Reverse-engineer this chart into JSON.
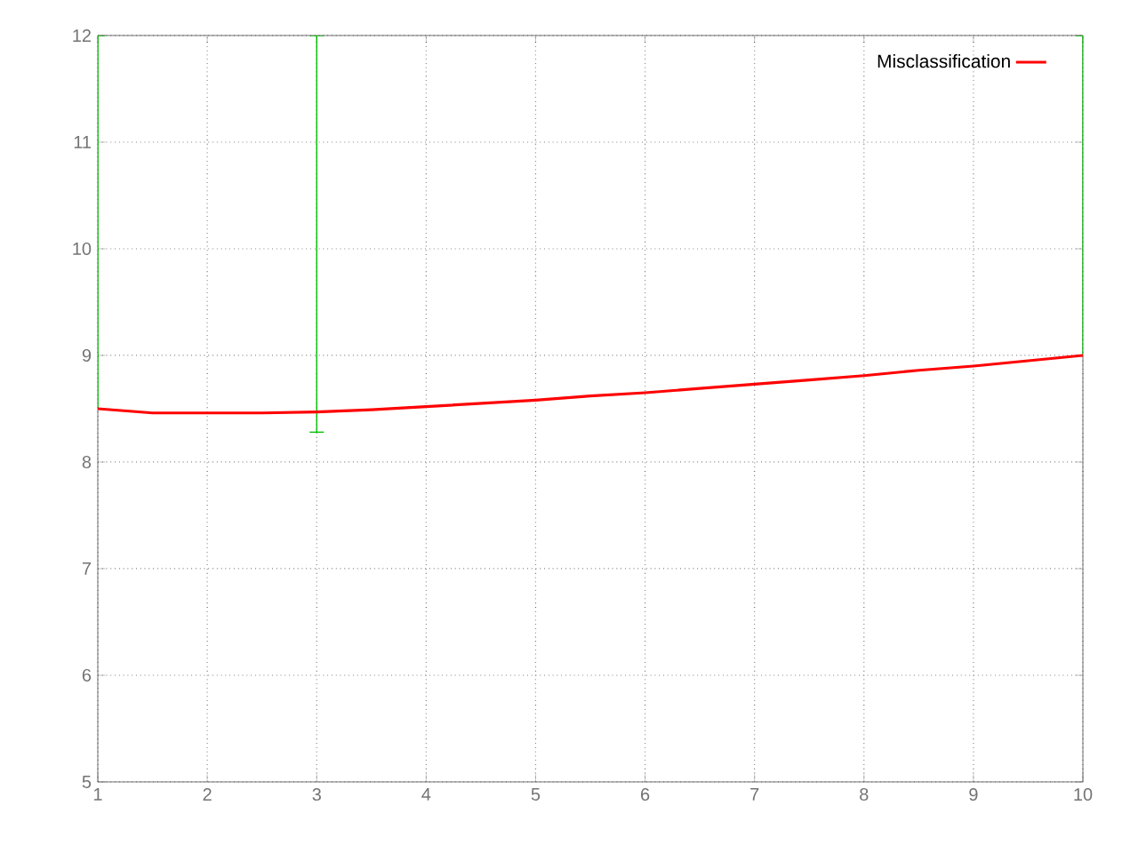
{
  "chart_data": {
    "type": "line",
    "xlim": [
      1,
      10
    ],
    "ylim": [
      5,
      12
    ],
    "xticks": [
      1,
      2,
      3,
      4,
      5,
      6,
      7,
      8,
      9,
      10
    ],
    "yticks": [
      5,
      6,
      7,
      8,
      9,
      10,
      11,
      12
    ],
    "grid": true,
    "legend": "top right",
    "marker": "none",
    "line_style": "solid",
    "series": [
      {
        "name": "Misclassification",
        "color": "#ff0000",
        "x": [
          1,
          1.5,
          2,
          2.5,
          3,
          3.5,
          4,
          4.5,
          5,
          5.5,
          6,
          6.5,
          7,
          7.5,
          8,
          8.5,
          9,
          9.5,
          10
        ],
        "values": [
          8.5,
          8.46,
          8.46,
          8.46,
          8.47,
          8.49,
          8.52,
          8.55,
          8.58,
          8.62,
          8.65,
          8.69,
          8.73,
          8.77,
          8.81,
          8.86,
          8.9,
          8.95,
          9.0
        ],
        "errors": [
          [
            8.5,
            12
          ],
          null,
          null,
          null,
          [
            8.28,
            12
          ],
          null,
          null,
          null,
          null,
          null,
          null,
          null,
          null,
          null,
          null,
          null,
          null,
          null,
          [
            9.0,
            12
          ]
        ]
      }
    ]
  }
}
